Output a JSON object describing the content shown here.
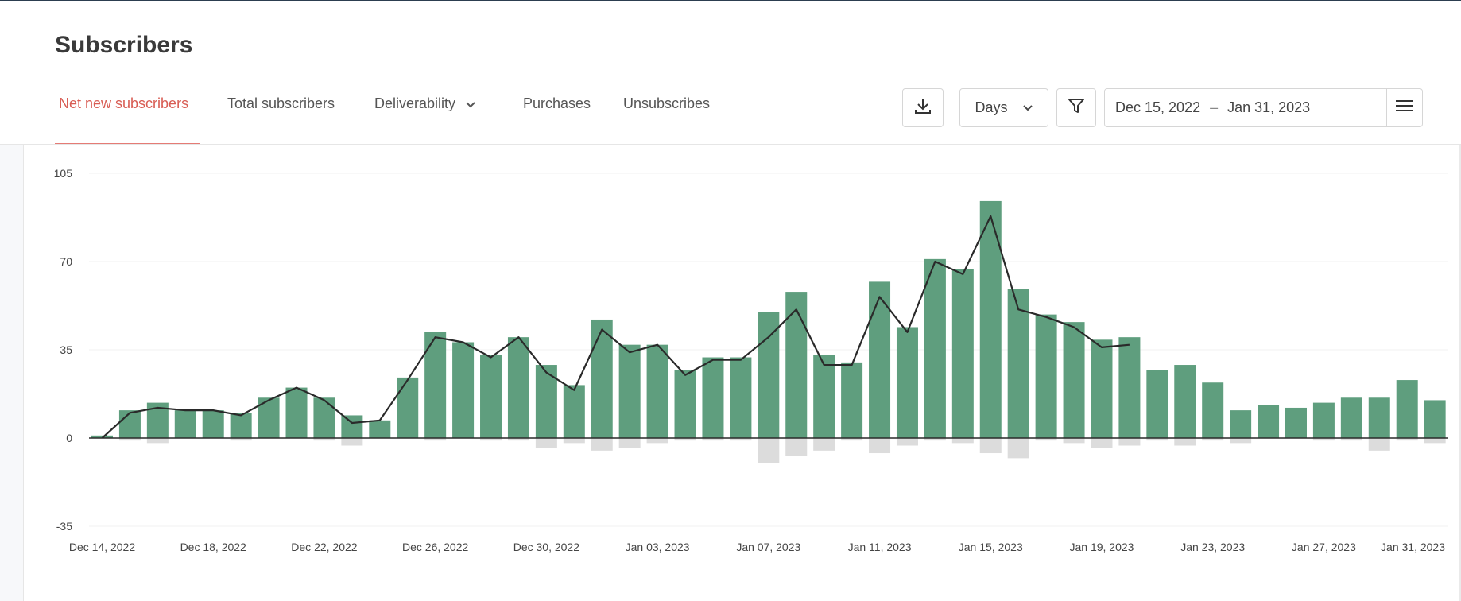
{
  "page": {
    "title": "Subscribers",
    "tabs": [
      {
        "label": "Net new subscribers",
        "active": true
      },
      {
        "label": "Total subscribers",
        "active": false
      },
      {
        "label": "Deliverability",
        "active": false
      },
      {
        "label": "Purchases",
        "active": false
      },
      {
        "label": "Unsubscribes",
        "active": false
      }
    ]
  },
  "toolbar": {
    "download_icon": "download-icon",
    "interval_label": "Days",
    "filter_icon": "filter-icon",
    "date_start": "Dec 15, 2022",
    "date_sep": "–",
    "date_end": "Jan 31, 2023",
    "menu_icon": "menu-icon"
  },
  "colors": {
    "accent": "#d85c53",
    "bar_positive": "#5f9e7e",
    "bar_negative": "#dcdcdc",
    "line": "#2a2a2a"
  },
  "chart_data": {
    "type": "bar",
    "ylim": [
      -35,
      105
    ],
    "y_ticks": [
      105,
      70,
      35,
      0,
      -35
    ],
    "x_tick_labels": [
      "Dec 14, 2022",
      "Dec 18, 2022",
      "Dec 22, 2022",
      "Dec 26, 2022",
      "Dec 30, 2022",
      "Jan 03, 2023",
      "Jan 07, 2023",
      "Jan 11, 2023",
      "Jan 15, 2023",
      "Jan 19, 2023",
      "Jan 23, 2023",
      "Jan 27, 2023",
      "Jan 31, 2023"
    ],
    "x_tick_days": [
      0,
      4,
      8,
      12,
      16,
      20,
      24,
      28,
      32,
      36,
      40,
      44,
      48
    ],
    "start_date": "Dec 14, 2022",
    "series": [
      {
        "kind": "bar",
        "values": [
          1,
          11,
          14,
          11,
          11,
          10,
          16,
          20,
          16,
          9,
          7,
          24,
          42,
          38,
          33,
          40,
          29,
          21,
          47,
          37,
          37,
          27,
          32,
          32,
          50,
          58,
          33,
          30,
          62,
          44,
          71,
          67,
          94,
          59,
          49,
          46,
          39,
          40,
          27,
          29,
          22,
          11,
          13,
          12,
          14,
          16,
          16,
          23,
          15
        ]
      },
      {
        "kind": "bar",
        "values": [
          0,
          -1,
          -2,
          0,
          0,
          -1,
          0,
          0,
          -1,
          -3,
          0,
          0,
          -1,
          0,
          -1,
          -1,
          -4,
          -2,
          -5,
          -4,
          -2,
          -1,
          -1,
          -1,
          -10,
          -7,
          -5,
          -1,
          -6,
          -3,
          -1,
          -2,
          -6,
          -8,
          -1,
          -2,
          -4,
          -3,
          -1,
          -3,
          -1,
          -2,
          0,
          0,
          -1,
          -1,
          -5,
          -1,
          -2
        ]
      },
      {
        "kind": "line",
        "values": [
          0,
          10,
          12,
          11,
          11,
          9,
          15,
          20,
          15,
          6,
          7,
          23,
          40,
          38,
          32,
          40,
          26,
          19,
          43,
          34,
          37,
          25,
          31,
          31,
          40,
          51,
          29,
          29,
          56,
          42,
          70,
          65,
          88,
          51,
          48,
          44,
          36,
          37
        ]
      }
    ]
  }
}
